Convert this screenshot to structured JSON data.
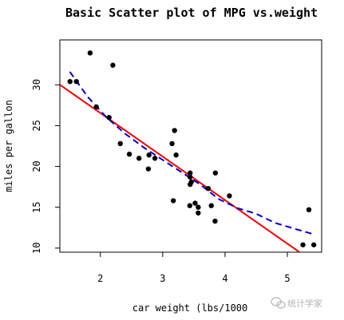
{
  "chart_data": {
    "type": "scatter",
    "title": "Basic Scatter plot of MPG vs.weight",
    "xlabel": "car weight (lbs/1000",
    "ylabel": "miles per gallon",
    "xlim": [
      1.35,
      5.55
    ],
    "ylim": [
      9.5,
      35.5
    ],
    "xticks": [
      2,
      3,
      4,
      5
    ],
    "yticks": [
      10,
      15,
      20,
      25,
      30
    ],
    "grid": false,
    "colors": {
      "points": "#000000",
      "fit_line": "#ee0000",
      "smooth_line": "#0000cc"
    },
    "points": [
      {
        "x": 2.62,
        "y": 21.0
      },
      {
        "x": 2.875,
        "y": 21.0
      },
      {
        "x": 2.32,
        "y": 22.8
      },
      {
        "x": 3.215,
        "y": 21.4
      },
      {
        "x": 3.44,
        "y": 18.7
      },
      {
        "x": 3.46,
        "y": 18.1
      },
      {
        "x": 3.57,
        "y": 14.3
      },
      {
        "x": 3.19,
        "y": 24.4
      },
      {
        "x": 3.15,
        "y": 22.8
      },
      {
        "x": 3.44,
        "y": 19.2
      },
      {
        "x": 3.44,
        "y": 17.8
      },
      {
        "x": 4.07,
        "y": 16.4
      },
      {
        "x": 3.73,
        "y": 17.3
      },
      {
        "x": 3.78,
        "y": 15.2
      },
      {
        "x": 5.25,
        "y": 10.4
      },
      {
        "x": 5.424,
        "y": 10.4
      },
      {
        "x": 5.345,
        "y": 14.7
      },
      {
        "x": 2.2,
        "y": 32.4
      },
      {
        "x": 1.615,
        "y": 30.4
      },
      {
        "x": 1.835,
        "y": 33.9
      },
      {
        "x": 2.465,
        "y": 21.5
      },
      {
        "x": 3.52,
        "y": 15.5
      },
      {
        "x": 3.435,
        "y": 15.2
      },
      {
        "x": 3.84,
        "y": 13.3
      },
      {
        "x": 3.845,
        "y": 19.2
      },
      {
        "x": 1.935,
        "y": 27.3
      },
      {
        "x": 2.14,
        "y": 26.0
      },
      {
        "x": 1.513,
        "y": 30.4
      },
      {
        "x": 3.17,
        "y": 15.8
      },
      {
        "x": 2.77,
        "y": 19.7
      },
      {
        "x": 3.57,
        "y": 15.0
      },
      {
        "x": 2.78,
        "y": 21.4
      }
    ],
    "fit_line": {
      "style": "solid",
      "x": [
        1.35,
        5.55
      ],
      "y": [
        30.01,
        7.61
      ]
    },
    "smooth_line": {
      "style": "dashed",
      "x": [
        1.51,
        1.8,
        2.1,
        2.4,
        2.7,
        3.0,
        3.3,
        3.6,
        3.9,
        4.2,
        4.5,
        4.8,
        5.1,
        5.42
      ],
      "y": [
        31.6,
        28.5,
        26.0,
        24.0,
        22.3,
        20.8,
        19.3,
        17.8,
        16.0,
        14.9,
        14.2,
        13.1,
        12.4,
        11.7
      ]
    }
  },
  "watermark": {
    "text": "统计学家",
    "icon": "wechat-icon"
  }
}
